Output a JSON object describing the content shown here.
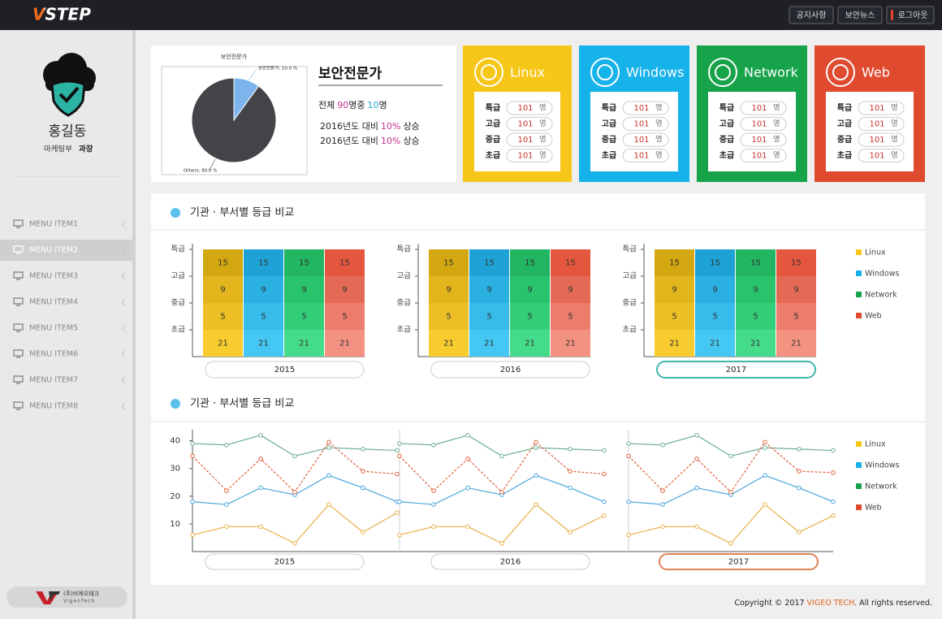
{
  "header": {
    "logo": "VSTEP",
    "buttons": [
      "공지사항",
      "보안뉴스",
      "로그아웃"
    ]
  },
  "sidebar": {
    "name": "홍길동",
    "department": "마케팅부",
    "position": "과장",
    "menu": [
      "MENU ITEM1",
      "MENU ITEM2",
      "MENU ITEM3",
      "MENU ITEM4",
      "MENU ITEM5",
      "MENU ITEM6",
      "MENU ITEM7",
      "MENU ITEM8"
    ],
    "active_menu": 1,
    "company": "(주)비제오테크",
    "company_en": "VigeoTech"
  },
  "summary": {
    "heading": "보안전문가",
    "total": [
      "전체",
      90,
      "명중",
      10,
      "명"
    ],
    "changes": [
      [
        "2016년도 대비",
        "10%",
        "상승"
      ],
      [
        "2016년도 대비",
        "10%",
        "상승"
      ]
    ]
  },
  "card_unit": "명",
  "cards": [
    {
      "name": "Linux",
      "color": "#f6c619",
      "rows": [
        {
          "grade": "특급",
          "count": 101
        },
        {
          "grade": "고급",
          "count": 101
        },
        {
          "grade": "중급",
          "count": 101
        },
        {
          "grade": "초급",
          "count": 101
        }
      ]
    },
    {
      "name": "Windows",
      "color": "#16b2ea",
      "rows": [
        {
          "grade": "특급",
          "count": 101
        },
        {
          "grade": "고급",
          "count": 101
        },
        {
          "grade": "중급",
          "count": 101
        },
        {
          "grade": "초급",
          "count": 101
        }
      ]
    },
    {
      "name": "Network",
      "color": "#17a34a",
      "rows": [
        {
          "grade": "특급",
          "count": 101
        },
        {
          "grade": "고급",
          "count": 101
        },
        {
          "grade": "중급",
          "count": 101
        },
        {
          "grade": "초급",
          "count": 101
        }
      ]
    },
    {
      "name": "Web",
      "color": "#e04a2e",
      "rows": [
        {
          "grade": "특급",
          "count": 101
        },
        {
          "grade": "고급",
          "count": 101
        },
        {
          "grade": "중급",
          "count": 101
        },
        {
          "grade": "초급",
          "count": 101
        }
      ]
    }
  ],
  "chart_data": [
    {
      "type": "pie",
      "title": "보안전문가",
      "categories": [
        "보안전문가",
        "Others"
      ],
      "values": [
        10,
        90
      ],
      "value_labels": [
        "보안전문가: 10.0 %",
        "Others: 90.0 %"
      ],
      "colors": [
        "#7cb5ec",
        "#434348"
      ]
    },
    {
      "type": "grid",
      "title": "기관 · 부서별 등급 비교",
      "grades": [
        "특급",
        "고급",
        "중급",
        "초급"
      ],
      "series": [
        {
          "name": "Linux",
          "color": "#f6c619",
          "shades": [
            "#d2a70f",
            "#e3b51c",
            "#ecbf27",
            "#f8cb2e"
          ]
        },
        {
          "name": "Windows",
          "color": "#16b2ea",
          "shades": [
            "#1ea2d6",
            "#2bb0e2",
            "#36bbea",
            "#44c8f3"
          ]
        },
        {
          "name": "Network",
          "color": "#17a34a",
          "shades": [
            "#22b562",
            "#29c36c",
            "#32cf78",
            "#44dc8a"
          ]
        },
        {
          "name": "Web",
          "color": "#e04a2e",
          "shades": [
            "#e4563d",
            "#e46a56",
            "#ec7d6c",
            "#f49282"
          ]
        }
      ],
      "panels": [
        {
          "label": "2015",
          "values": [
            [
              15,
              9,
              5,
              21
            ],
            [
              15,
              9,
              5,
              21
            ],
            [
              15,
              9,
              5,
              21
            ],
            [
              15,
              9,
              5,
              21
            ]
          ]
        },
        {
          "label": "2016",
          "values": [
            [
              15,
              9,
              5,
              21
            ],
            [
              15,
              9,
              5,
              21
            ],
            [
              15,
              9,
              5,
              21
            ],
            [
              15,
              9,
              5,
              21
            ]
          ]
        },
        {
          "label": "2017",
          "values": [
            [
              15,
              9,
              5,
              21
            ],
            [
              15,
              9,
              5,
              21
            ],
            [
              15,
              9,
              5,
              21
            ],
            [
              15,
              9,
              5,
              21
            ]
          ]
        }
      ],
      "active_panel": 2
    },
    {
      "type": "line",
      "title": "기관 · 부서별 등급 비교",
      "ylim": [
        0,
        44
      ],
      "yticks": [
        10,
        20,
        30,
        40
      ],
      "series": [
        {
          "name": "Linux",
          "color": "#f6c619",
          "line_color": "#e8b048",
          "dashed": false
        },
        {
          "name": "Windows",
          "color": "#16b2ea",
          "line_color": "#4aa6dc",
          "dashed": false
        },
        {
          "name": "Network",
          "color": "#17a34a",
          "line_color": "#6fae94",
          "dashed": false
        },
        {
          "name": "Web",
          "color": "#e04a2e",
          "line_color": "#e0603c",
          "dashed": true
        }
      ],
      "panels": [
        {
          "label": "2015",
          "values": [
            [
              6,
              9,
              9,
              3,
              17,
              7,
              14
            ],
            [
              18,
              17,
              23,
              20.5,
              27.5,
              23,
              18
            ],
            [
              39,
              38.5,
              42,
              34.5,
              37.5,
              37,
              36.5
            ],
            [
              34.5,
              22,
              33.5,
              21.5,
              39.5,
              29,
              28
            ]
          ]
        },
        {
          "label": "2016",
          "values": [
            [
              6,
              9,
              9,
              3,
              17,
              7,
              13
            ],
            [
              18,
              17,
              23,
              20.5,
              27.5,
              23,
              18
            ],
            [
              39,
              38.5,
              42,
              34.5,
              37.5,
              37,
              36.5
            ],
            [
              34.5,
              22,
              33.5,
              21.5,
              39.5,
              29,
              28
            ]
          ]
        },
        {
          "label": "2017",
          "values": [
            [
              6,
              9,
              9,
              3,
              17,
              7,
              13
            ],
            [
              18,
              17,
              23,
              20.5,
              27.5,
              23,
              18
            ],
            [
              39,
              38.5,
              42,
              34.5,
              37.5,
              37,
              36.5
            ],
            [
              34.5,
              22,
              33.5,
              21.5,
              39.5,
              29,
              28.5
            ]
          ]
        }
      ],
      "active_panel": 2
    }
  ],
  "footer": [
    "Copyright © 2017",
    "VIGEO TECH",
    ". All rights reserved."
  ]
}
